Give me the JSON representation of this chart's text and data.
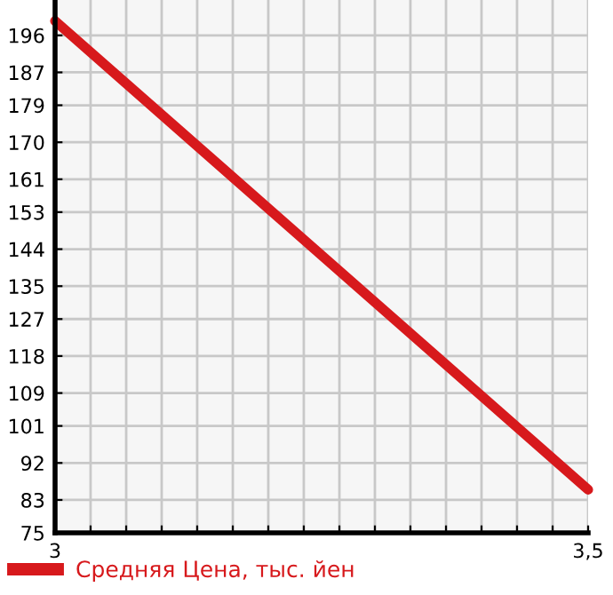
{
  "chart_data": {
    "type": "line",
    "x": [
      3,
      3.5
    ],
    "series": [
      {
        "name": "Средняя Цена, тыс. йен",
        "color": "#d7191c",
        "values": [
          199.5,
          85.5
        ]
      }
    ],
    "xlim": [
      3,
      3.5
    ],
    "ylim": [
      75,
      204.6
    ],
    "xticks": [
      {
        "value": 3,
        "label": "3"
      },
      {
        "value": 3.0333,
        "label": null
      },
      {
        "value": 3.0667,
        "label": null
      },
      {
        "value": 3.1,
        "label": null
      },
      {
        "value": 3.1333,
        "label": null
      },
      {
        "value": 3.1667,
        "label": null
      },
      {
        "value": 3.2,
        "label": null
      },
      {
        "value": 3.2333,
        "label": null
      },
      {
        "value": 3.2667,
        "label": null
      },
      {
        "value": 3.3,
        "label": null
      },
      {
        "value": 3.3333,
        "label": null
      },
      {
        "value": 3.3667,
        "label": null
      },
      {
        "value": 3.4,
        "label": null
      },
      {
        "value": 3.4333,
        "label": null
      },
      {
        "value": 3.4667,
        "label": null
      },
      {
        "value": 3.5,
        "label": "3,5"
      }
    ],
    "yticks": [
      75,
      83,
      92,
      101,
      109,
      118,
      127,
      135,
      144,
      153,
      161,
      170,
      179,
      187,
      196
    ],
    "grid": true,
    "legend": "bottom",
    "line_style": "solid",
    "marker": "none"
  }
}
